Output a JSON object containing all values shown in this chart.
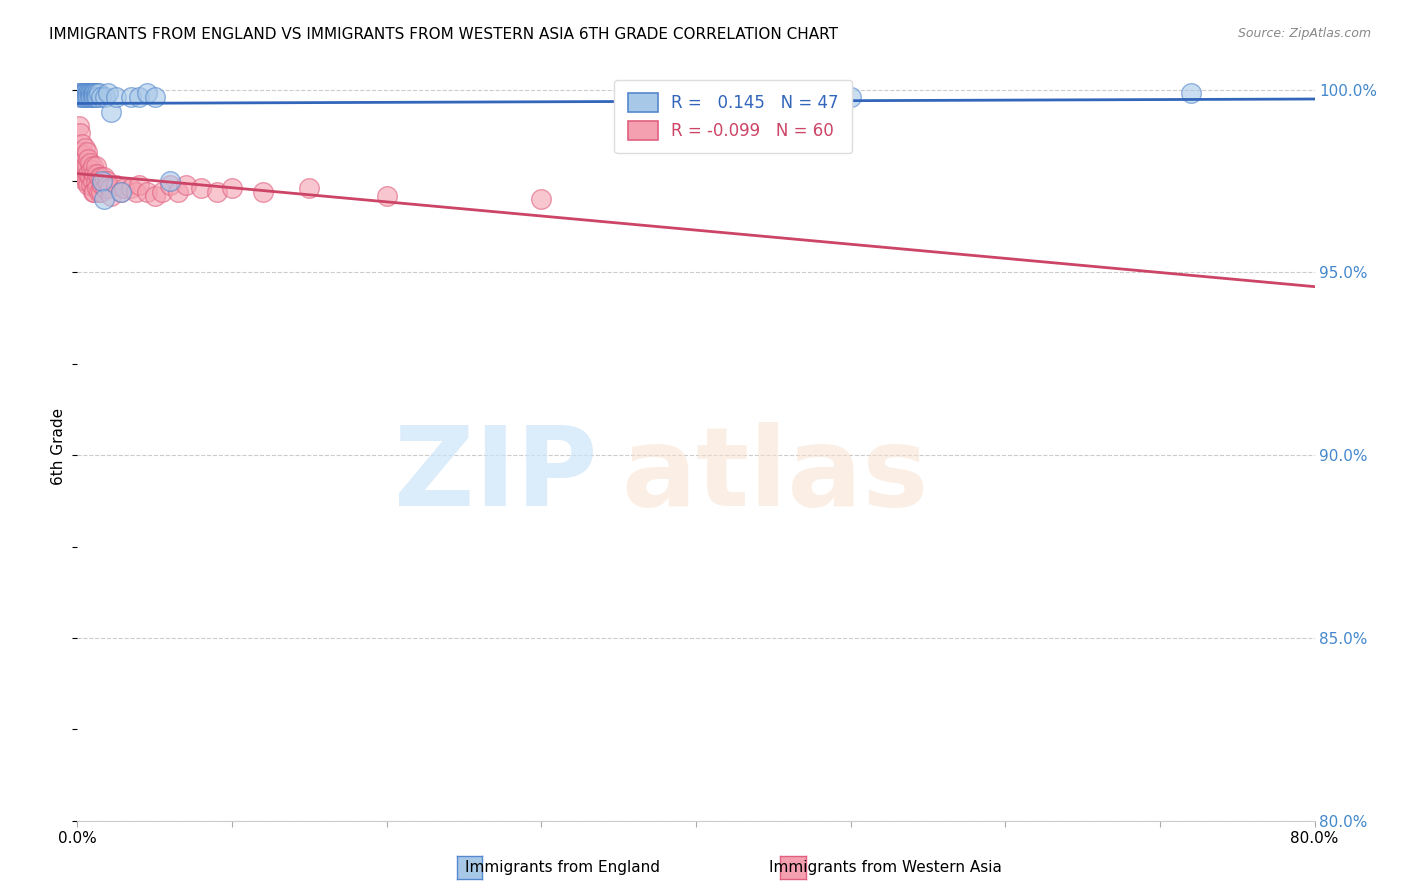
{
  "title": "IMMIGRANTS FROM ENGLAND VS IMMIGRANTS FROM WESTERN ASIA 6TH GRADE CORRELATION CHART",
  "source": "Source: ZipAtlas.com",
  "ylabel": "6th Grade",
  "x_min": 0.0,
  "x_max": 0.8,
  "y_min": 0.8,
  "y_max": 1.005,
  "blue_R": 0.145,
  "blue_N": 47,
  "pink_R": -0.099,
  "pink_N": 60,
  "blue_color": "#A8C8E8",
  "pink_color": "#F4A0B0",
  "blue_edge_color": "#5588CC",
  "pink_edge_color": "#E06080",
  "blue_line_color": "#3366BB",
  "pink_line_color": "#CC4466",
  "legend_label_blue": "Immigrants from England",
  "legend_label_pink": "Immigrants from Western Asia",
  "blue_scatter_x": [
    0.001,
    0.002,
    0.002,
    0.003,
    0.003,
    0.004,
    0.004,
    0.004,
    0.005,
    0.005,
    0.005,
    0.006,
    0.006,
    0.007,
    0.007,
    0.007,
    0.008,
    0.008,
    0.008,
    0.009,
    0.009,
    0.01,
    0.01,
    0.01,
    0.011,
    0.011,
    0.011,
    0.012,
    0.012,
    0.013,
    0.013,
    0.014,
    0.015,
    0.016,
    0.017,
    0.018,
    0.02,
    0.022,
    0.025,
    0.028,
    0.035,
    0.04,
    0.045,
    0.05,
    0.06,
    0.5,
    0.72
  ],
  "blue_scatter_y": [
    0.999,
    0.999,
    0.998,
    0.999,
    0.998,
    0.999,
    0.999,
    0.998,
    0.999,
    0.999,
    0.998,
    0.999,
    0.998,
    0.999,
    0.999,
    0.998,
    0.999,
    0.999,
    0.998,
    0.999,
    0.998,
    0.999,
    0.999,
    0.998,
    0.999,
    0.999,
    0.998,
    0.999,
    0.998,
    0.999,
    0.998,
    0.999,
    0.998,
    0.975,
    0.97,
    0.998,
    0.999,
    0.994,
    0.998,
    0.972,
    0.998,
    0.998,
    0.999,
    0.998,
    0.975,
    0.998,
    0.999
  ],
  "pink_scatter_x": [
    0.001,
    0.001,
    0.002,
    0.002,
    0.003,
    0.003,
    0.004,
    0.004,
    0.005,
    0.005,
    0.005,
    0.006,
    0.006,
    0.006,
    0.007,
    0.007,
    0.007,
    0.008,
    0.008,
    0.009,
    0.009,
    0.01,
    0.01,
    0.01,
    0.011,
    0.011,
    0.012,
    0.012,
    0.013,
    0.013,
    0.014,
    0.014,
    0.015,
    0.015,
    0.016,
    0.017,
    0.018,
    0.019,
    0.02,
    0.021,
    0.022,
    0.025,
    0.028,
    0.03,
    0.035,
    0.038,
    0.04,
    0.045,
    0.05,
    0.055,
    0.06,
    0.065,
    0.07,
    0.08,
    0.09,
    0.1,
    0.12,
    0.15,
    0.2,
    0.3
  ],
  "pink_scatter_y": [
    0.99,
    0.983,
    0.988,
    0.98,
    0.985,
    0.978,
    0.982,
    0.976,
    0.984,
    0.979,
    0.975,
    0.983,
    0.979,
    0.975,
    0.981,
    0.977,
    0.974,
    0.98,
    0.976,
    0.978,
    0.974,
    0.979,
    0.975,
    0.972,
    0.977,
    0.972,
    0.979,
    0.975,
    0.977,
    0.973,
    0.976,
    0.972,
    0.976,
    0.972,
    0.974,
    0.976,
    0.973,
    0.975,
    0.974,
    0.973,
    0.971,
    0.974,
    0.972,
    0.973,
    0.973,
    0.972,
    0.974,
    0.972,
    0.971,
    0.972,
    0.974,
    0.972,
    0.974,
    0.973,
    0.972,
    0.973,
    0.972,
    0.973,
    0.971,
    0.97
  ]
}
